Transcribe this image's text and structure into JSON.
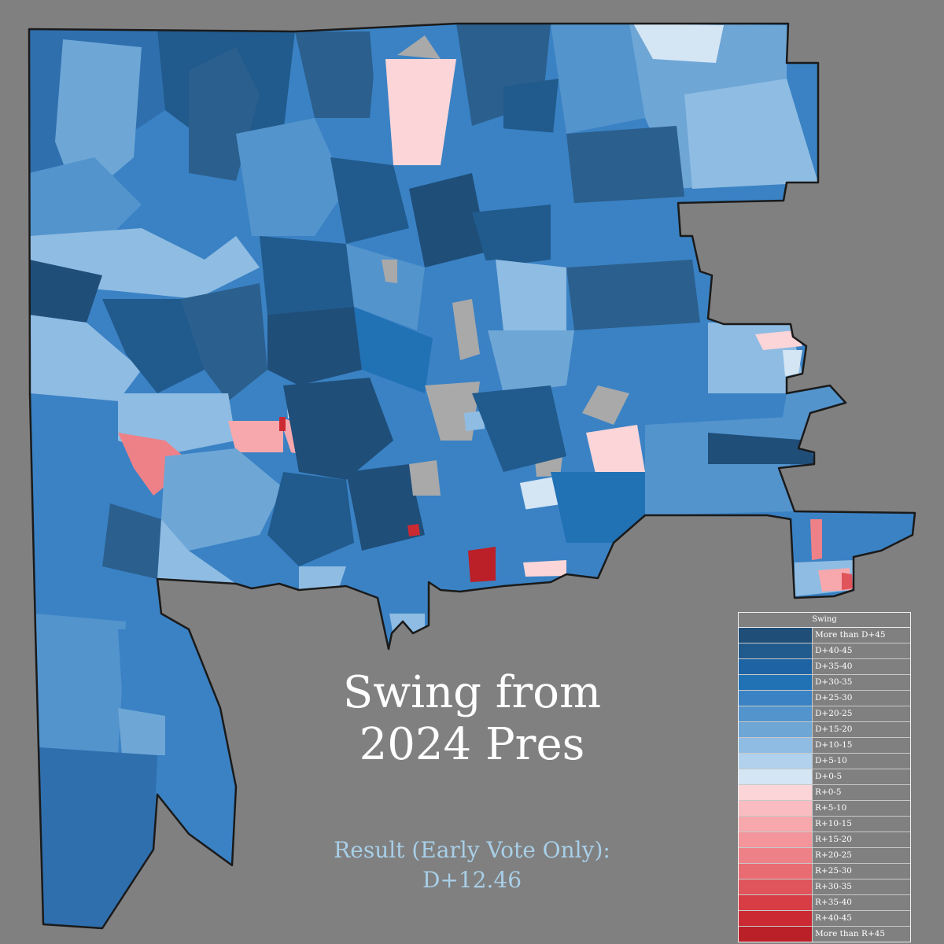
{
  "title_line1": "Swing from",
  "title_line2": "2024 Pres",
  "subtitle_line1": "Result (Early Vote Only):",
  "subtitle_line2": "D+12.46",
  "legend": {
    "title": "Swing",
    "items": [
      {
        "label": "More than D+45",
        "color": "#1f4e79"
      },
      {
        "label": "D+40-45",
        "color": "#215a8c"
      },
      {
        "label": "D+35-40",
        "color": "#1e63a3"
      },
      {
        "label": "D+30-35",
        "color": "#2171b5"
      },
      {
        "label": "D+25-30",
        "color": "#3a82c4"
      },
      {
        "label": "D+20-25",
        "color": "#5394cd"
      },
      {
        "label": "D+15-20",
        "color": "#6ea6d6"
      },
      {
        "label": "D+10-15",
        "color": "#8fbce3"
      },
      {
        "label": "D+5-10",
        "color": "#b1d1ec"
      },
      {
        "label": "D+0-5",
        "color": "#d4e5f4"
      },
      {
        "label": "R+0-5",
        "color": "#fbd5d8"
      },
      {
        "label": "R+5-10",
        "color": "#f9bcc0"
      },
      {
        "label": "R+10-15",
        "color": "#f6a8ad"
      },
      {
        "label": "R+15-20",
        "color": "#f3959b"
      },
      {
        "label": "R+20-25",
        "color": "#ee8187"
      },
      {
        "label": "R+25-30",
        "color": "#e86c72"
      },
      {
        "label": "R+30-35",
        "color": "#e0545b"
      },
      {
        "label": "R+35-40",
        "color": "#d83c44"
      },
      {
        "label": "R+40-45",
        "color": "#cc2a33"
      },
      {
        "label": "More than R+45",
        "color": "#bb1f28"
      }
    ]
  },
  "colors": {
    "background": "#808080",
    "county_border": "#1a1a1a",
    "no_data": "#a9a9a9",
    "base_fill": "#3a82c4"
  }
}
